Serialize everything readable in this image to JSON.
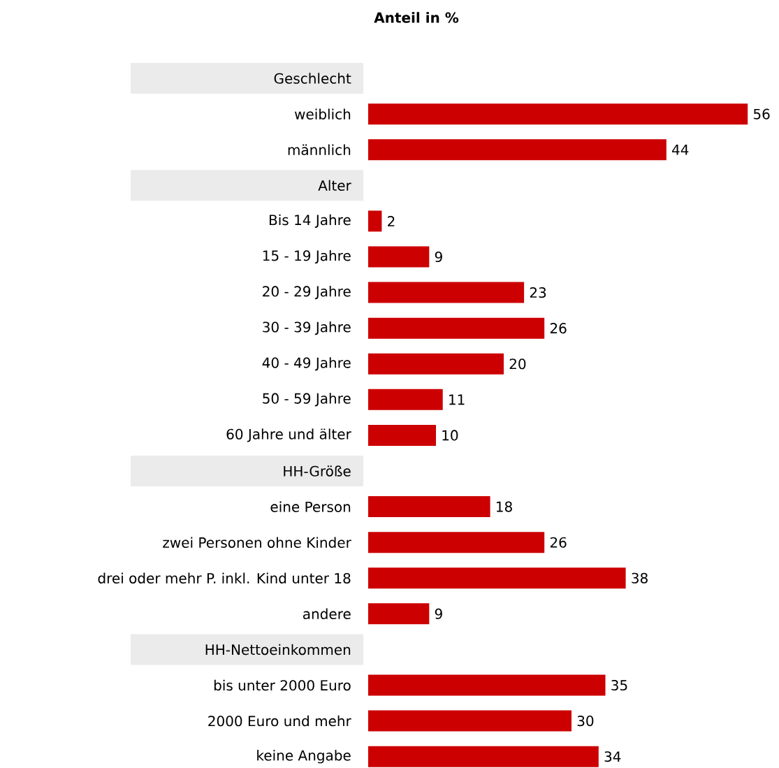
{
  "chart_data": {
    "type": "bar",
    "orientation": "horizontal",
    "title": "Anteil in %",
    "categories": [
      "Geschlecht",
      "weiblich",
      "männlich",
      "Alter",
      "Bis 14 Jahre",
      "15 - 19 Jahre",
      "20 - 29 Jahre",
      "30 - 39 Jahre",
      "40 - 49 Jahre",
      "50 - 59 Jahre",
      "60 Jahre und älter",
      "HH-Größe",
      "eine Person",
      "zwei Personen ohne Kinder",
      "drei oder mehr P. inkl. Kind unter 18",
      "andere",
      "HH-Nettoeinkommen",
      "bis unter 2000 Euro",
      "2000 Euro und mehr",
      "keine Angabe"
    ],
    "values": [
      null,
      56,
      44,
      null,
      2,
      9,
      23,
      26,
      20,
      11,
      10,
      null,
      18,
      26,
      38,
      9,
      null,
      35,
      30,
      34
    ],
    "color": "#cc0000",
    "tick_labels": "y",
    "data_labels": true
  }
}
